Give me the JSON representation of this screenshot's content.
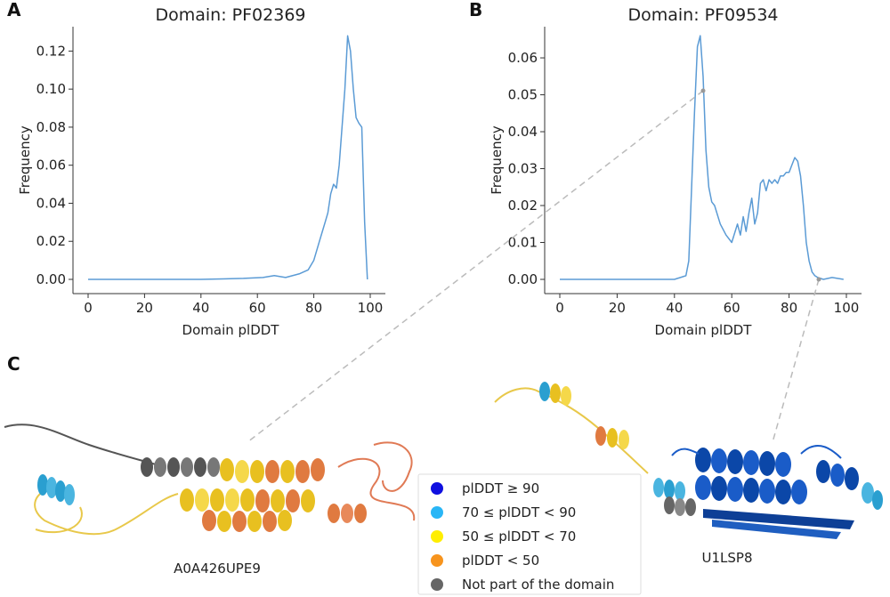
{
  "panels": {
    "a": "A",
    "b": "B",
    "c": "C"
  },
  "chart_data": [
    {
      "type": "line",
      "panel": "A",
      "title": "Domain: PF02369",
      "xlabel": "Domain plDDT",
      "ylabel": "Frequency",
      "xlim": [
        0,
        100
      ],
      "ylim": [
        0,
        0.13
      ],
      "xticks": [
        0,
        20,
        40,
        60,
        80,
        100
      ],
      "yticks": [
        0.0,
        0.02,
        0.04,
        0.06,
        0.08,
        0.1,
        0.12
      ],
      "ytick_labels": [
        "0.00",
        "0.02",
        "0.04",
        "0.06",
        "0.08",
        "0.10",
        "0.12"
      ],
      "color": "#5b9bd5",
      "x": [
        0,
        20,
        40,
        55,
        62,
        66,
        70,
        75,
        78,
        80,
        82,
        83,
        84,
        85,
        86,
        87,
        88,
        89,
        90,
        91,
        92,
        93,
        94,
        95,
        96,
        97,
        98,
        99
      ],
      "y": [
        0.0,
        0.0,
        0.0,
        0.0005,
        0.001,
        0.002,
        0.001,
        0.003,
        0.005,
        0.01,
        0.02,
        0.025,
        0.03,
        0.035,
        0.045,
        0.05,
        0.048,
        0.06,
        0.08,
        0.1,
        0.128,
        0.12,
        0.1,
        0.085,
        0.082,
        0.08,
        0.03,
        0.0
      ]
    },
    {
      "type": "line",
      "panel": "B",
      "title": "Domain: PF09534",
      "xlabel": "Domain plDDT",
      "ylabel": "Frequency",
      "xlim": [
        0,
        100
      ],
      "ylim": [
        0,
        0.067
      ],
      "xticks": [
        0,
        20,
        40,
        60,
        80,
        100
      ],
      "yticks": [
        0.0,
        0.01,
        0.02,
        0.03,
        0.04,
        0.05,
        0.06
      ],
      "ytick_labels": [
        "0.00",
        "0.01",
        "0.02",
        "0.03",
        "0.04",
        "0.05",
        "0.06"
      ],
      "color": "#5b9bd5",
      "x": [
        0,
        20,
        40,
        44,
        45,
        46,
        47,
        48,
        49,
        50,
        51,
        52,
        53,
        54,
        56,
        58,
        60,
        62,
        63,
        64,
        65,
        66,
        67,
        68,
        69,
        70,
        71,
        72,
        73,
        74,
        75,
        76,
        77,
        78,
        79,
        80,
        81,
        82,
        83,
        84,
        85,
        86,
        87,
        88,
        89,
        90,
        92,
        95,
        99
      ],
      "y": [
        0.0,
        0.0,
        0.0,
        0.001,
        0.005,
        0.025,
        0.045,
        0.063,
        0.066,
        0.055,
        0.035,
        0.025,
        0.021,
        0.02,
        0.015,
        0.012,
        0.01,
        0.015,
        0.012,
        0.017,
        0.013,
        0.018,
        0.022,
        0.015,
        0.018,
        0.026,
        0.027,
        0.024,
        0.027,
        0.026,
        0.027,
        0.026,
        0.028,
        0.028,
        0.029,
        0.029,
        0.031,
        0.033,
        0.032,
        0.028,
        0.02,
        0.01,
        0.005,
        0.002,
        0.001,
        0.0005,
        0.0,
        0.0005,
        0.0
      ]
    }
  ],
  "legend": {
    "items": [
      {
        "label": "plDDT ≥ 90",
        "color": "#1010e0"
      },
      {
        "label": "70 ≤ plDDT < 90",
        "color": "#29b6f6"
      },
      {
        "label": "50 ≤ plDDT < 70",
        "color": "#ffee00"
      },
      {
        "label": "plDDT < 50",
        "color": "#f7941d"
      },
      {
        "label": "Not part of the domain",
        "color": "#666666"
      }
    ]
  },
  "structures": {
    "left_label": "A0A426UPE9",
    "right_label": "U1LSP8"
  },
  "colors": {
    "connector": "#bbbbbb",
    "yellow": "#f0d020",
    "orange": "#e07040",
    "grey": "#6a6a6a",
    "light_blue": "#4aaad8",
    "dark_blue": "#0b47a8"
  }
}
